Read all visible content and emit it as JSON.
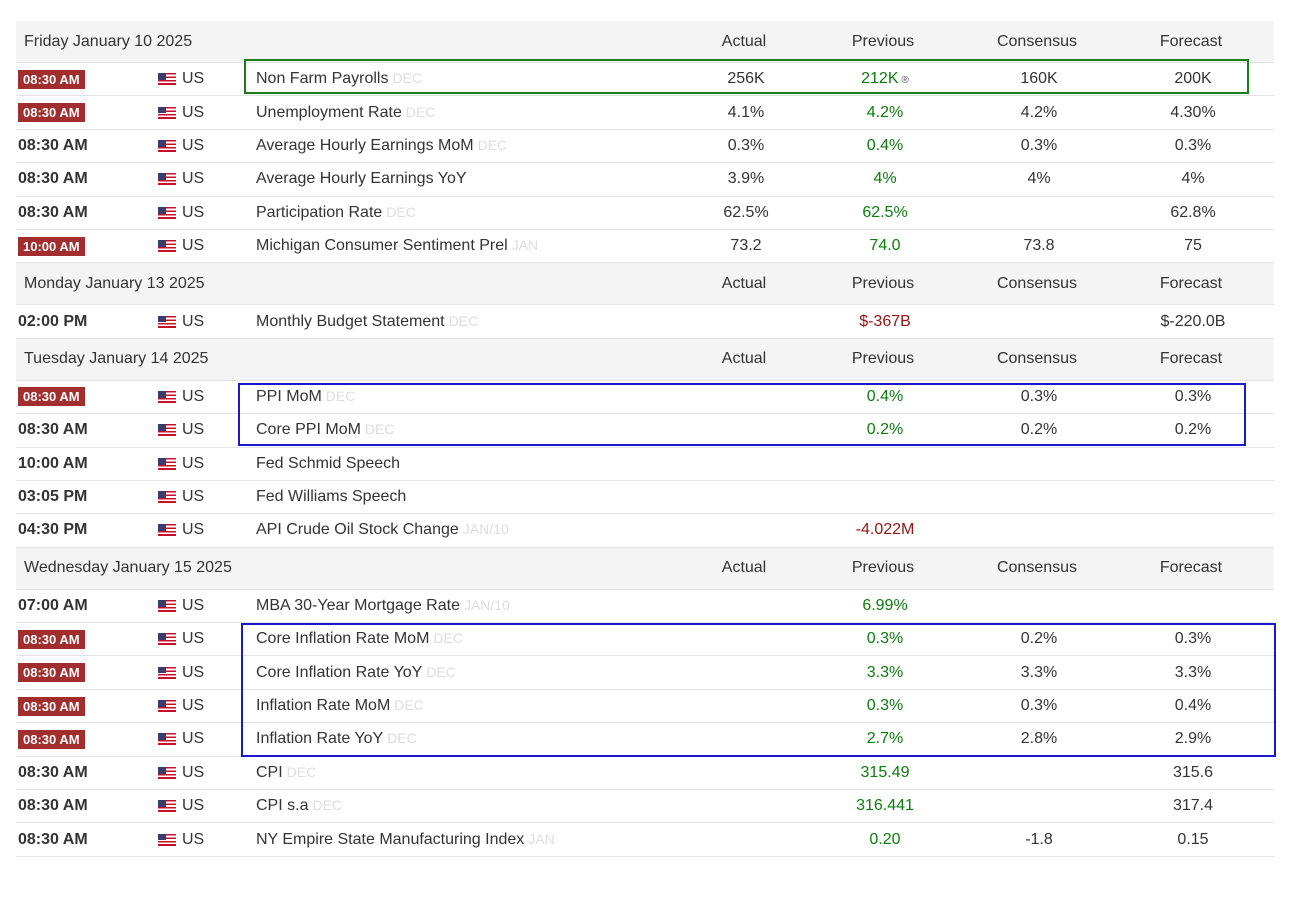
{
  "headers": {
    "actual": "Actual",
    "previous": "Previous",
    "consensus": "Consensus",
    "forecast": "Forecast"
  },
  "days": [
    {
      "date": "Friday January 10 2025",
      "events": [
        {
          "time": "08:30 AM",
          "badge": true,
          "country": "US",
          "name": "Non Farm Payrolls",
          "ref": "DEC",
          "actual": "256K",
          "previous": "212K",
          "previous_color": "green",
          "revised_icon": "®",
          "consensus": "160K",
          "forecast": "200K"
        },
        {
          "time": "08:30 AM",
          "badge": true,
          "country": "US",
          "name": "Unemployment Rate",
          "ref": "DEC",
          "actual": "4.1%",
          "previous": "4.2%",
          "previous_color": "green",
          "consensus": "4.2%",
          "forecast": "4.30%"
        },
        {
          "time": "08:30 AM",
          "badge": false,
          "country": "US",
          "name": "Average Hourly Earnings MoM",
          "ref": "DEC",
          "actual": "0.3%",
          "previous": "0.4%",
          "previous_color": "green",
          "consensus": "0.3%",
          "forecast": "0.3%"
        },
        {
          "time": "08:30 AM",
          "badge": false,
          "country": "US",
          "name": "Average Hourly Earnings YoY",
          "ref": "",
          "actual": "3.9%",
          "previous": "4%",
          "previous_color": "green",
          "consensus": "4%",
          "forecast": "4%"
        },
        {
          "time": "08:30 AM",
          "badge": false,
          "country": "US",
          "name": "Participation Rate",
          "ref": "DEC",
          "actual": "62.5%",
          "previous": "62.5%",
          "previous_color": "green",
          "consensus": "",
          "forecast": "62.8%"
        },
        {
          "time": "10:00 AM",
          "badge": true,
          "country": "US",
          "name": "Michigan Consumer Sentiment Prel",
          "ref": "JAN",
          "actual": "73.2",
          "previous": "74.0",
          "previous_color": "green",
          "consensus": "73.8",
          "forecast": "75"
        }
      ]
    },
    {
      "date": "Monday January 13 2025",
      "events": [
        {
          "time": "02:00 PM",
          "badge": false,
          "country": "US",
          "name": "Monthly Budget Statement",
          "ref": "DEC",
          "actual": "",
          "previous": "$-367B",
          "previous_color": "red",
          "consensus": "",
          "forecast": "$-220.0B"
        }
      ]
    },
    {
      "date": "Tuesday January 14 2025",
      "events": [
        {
          "time": "08:30 AM",
          "badge": true,
          "country": "US",
          "name": "PPI MoM",
          "ref": "DEC",
          "actual": "",
          "previous": "0.4%",
          "previous_color": "green",
          "consensus": "0.3%",
          "forecast": "0.3%"
        },
        {
          "time": "08:30 AM",
          "badge": false,
          "country": "US",
          "name": "Core PPI MoM",
          "ref": "DEC",
          "actual": "",
          "previous": "0.2%",
          "previous_color": "green",
          "consensus": "0.2%",
          "forecast": "0.2%"
        },
        {
          "time": "10:00 AM",
          "badge": false,
          "country": "US",
          "name": "Fed Schmid Speech",
          "ref": "",
          "actual": "",
          "previous": "",
          "previous_color": "green",
          "consensus": "",
          "forecast": ""
        },
        {
          "time": "03:05 PM",
          "badge": false,
          "country": "US",
          "name": "Fed Williams Speech",
          "ref": "",
          "actual": "",
          "previous": "",
          "previous_color": "green",
          "consensus": "",
          "forecast": ""
        },
        {
          "time": "04:30 PM",
          "badge": false,
          "country": "US",
          "name": "API Crude Oil Stock Change",
          "ref": "JAN/10",
          "actual": "",
          "previous": "-4.022M",
          "previous_color": "red",
          "consensus": "",
          "forecast": ""
        }
      ]
    },
    {
      "date": "Wednesday January 15 2025",
      "events": [
        {
          "time": "07:00 AM",
          "badge": false,
          "country": "US",
          "name": "MBA 30-Year Mortgage Rate",
          "ref": "JAN/10",
          "actual": "",
          "previous": "6.99%",
          "previous_color": "green",
          "consensus": "",
          "forecast": ""
        },
        {
          "time": "08:30 AM",
          "badge": true,
          "country": "US",
          "name": "Core Inflation Rate MoM",
          "ref": "DEC",
          "actual": "",
          "previous": "0.3%",
          "previous_color": "green",
          "consensus": "0.2%",
          "forecast": "0.3%"
        },
        {
          "time": "08:30 AM",
          "badge": true,
          "country": "US",
          "name": "Core Inflation Rate YoY",
          "ref": "DEC",
          "actual": "",
          "previous": "3.3%",
          "previous_color": "green",
          "consensus": "3.3%",
          "forecast": "3.3%"
        },
        {
          "time": "08:30 AM",
          "badge": true,
          "country": "US",
          "name": "Inflation Rate MoM",
          "ref": "DEC",
          "actual": "",
          "previous": "0.3%",
          "previous_color": "green",
          "consensus": "0.3%",
          "forecast": "0.4%"
        },
        {
          "time": "08:30 AM",
          "badge": true,
          "country": "US",
          "name": "Inflation Rate YoY",
          "ref": "DEC",
          "actual": "",
          "previous": "2.7%",
          "previous_color": "green",
          "consensus": "2.8%",
          "forecast": "2.9%"
        },
        {
          "time": "08:30 AM",
          "badge": false,
          "country": "US",
          "name": "CPI",
          "ref": "DEC",
          "actual": "",
          "previous": "315.49",
          "previous_color": "green",
          "consensus": "",
          "forecast": "315.6"
        },
        {
          "time": "08:30 AM",
          "badge": false,
          "country": "US",
          "name": "CPI s.a",
          "ref": "DEC",
          "actual": "",
          "previous": "316.441",
          "previous_color": "green",
          "consensus": "",
          "forecast": "317.4"
        },
        {
          "time": "08:30 AM",
          "badge": false,
          "country": "US",
          "name": "NY Empire State Manufacturing Index",
          "ref": "JAN",
          "actual": "",
          "previous": "0.20",
          "previous_color": "green",
          "consensus": "-1.8",
          "forecast": "0.15"
        }
      ]
    }
  ],
  "highlights": [
    {
      "color": "#1a7f1a",
      "covers": "Non Farm Payrolls"
    },
    {
      "color": "#1a1acc",
      "covers": "PPI MoM, Core PPI MoM"
    },
    {
      "color": "#1a1acc",
      "covers": "Core Inflation Rate MoM through Inflation Rate YoY"
    }
  ]
}
